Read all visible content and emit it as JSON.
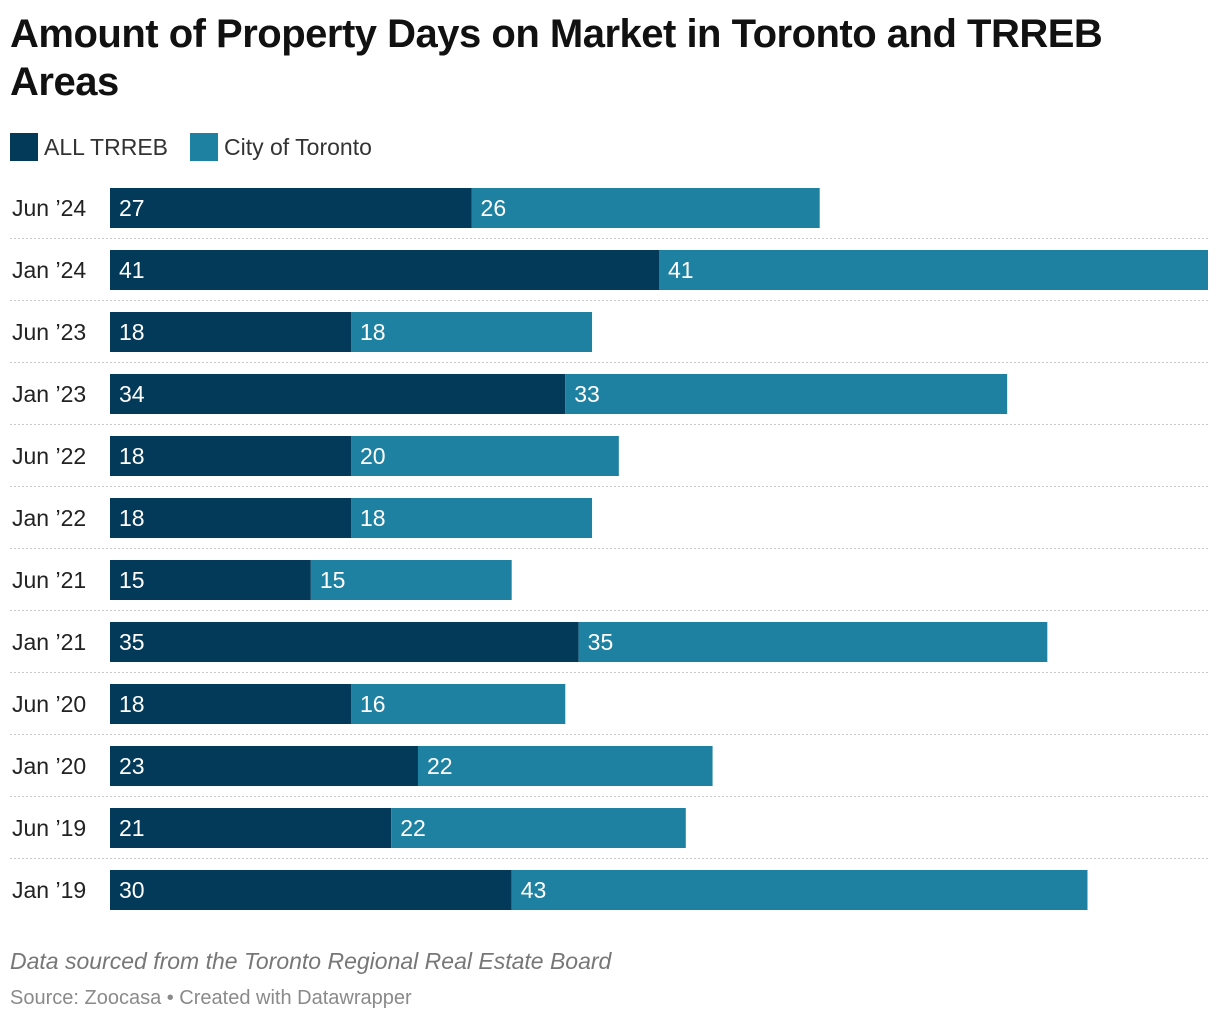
{
  "title": "Amount of Property Days on Market in Toronto and TRREB Areas",
  "legend": [
    {
      "label": "ALL TRREB",
      "color": "#033a5a"
    },
    {
      "label": "City of Toronto",
      "color": "#1e81a1"
    }
  ],
  "chart_data": {
    "type": "bar",
    "orientation": "horizontal",
    "stacked": true,
    "categories": [
      "Jun ’24",
      "Jan ’24",
      "Jun ’23",
      "Jan ’23",
      "Jun ’22",
      "Jan ’22",
      "Jun ’21",
      "Jan ’21",
      "Jun ’20",
      "Jan ’20",
      "Jun ’19",
      "Jan ’19"
    ],
    "series": [
      {
        "name": "ALL TRREB",
        "color": "#033a5a",
        "values": [
          27,
          41,
          18,
          34,
          18,
          18,
          15,
          35,
          18,
          23,
          21,
          30
        ]
      },
      {
        "name": "City of Toronto",
        "color": "#1e81a1",
        "values": [
          26,
          41,
          18,
          33,
          20,
          18,
          15,
          35,
          16,
          22,
          22,
          43
        ]
      }
    ],
    "xlim": [
      0,
      82
    ],
    "grid": false,
    "legend_position": "top-left",
    "title": "Amount of Property Days on Market in Toronto and TRREB Areas"
  },
  "notes": "Data sourced from the Toronto Regional Real Estate Board",
  "source": "Source: Zoocasa • Created with Datawrapper"
}
